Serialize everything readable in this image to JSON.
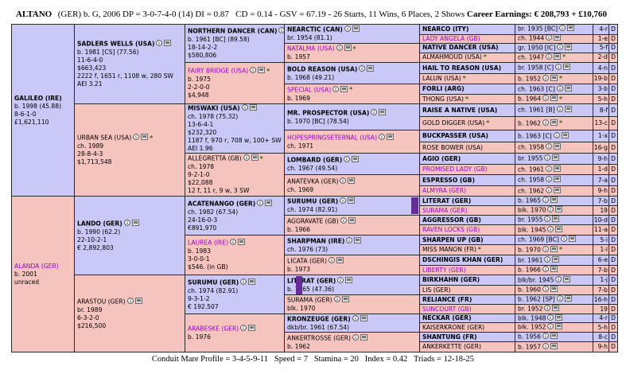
{
  "header": {
    "name": "ALTANO",
    "details": "(GER) b. G, 2006 DP = 3-0-7-4-0 (14) DI = 0.87   CD = 0.14 - GSV = 67.19 - 26 Starts, 11 Wins, 6 Places, 2 Shows",
    "earnings_label": "Career Earnings:",
    "earnings": "€ 208,793 + £10,760"
  },
  "pedigree": {
    "gen1": [
      {
        "name": "GALILEO (IRE)",
        "lines": [
          "b. 1998 (45.88)",
          "8-6-1-0",
          "£1,621,110"
        ]
      },
      {
        "name": "ALANDA (GER)",
        "color": "#9b00c8",
        "lines": [
          "b. 2001",
          "unraced"
        ]
      }
    ],
    "gen2": [
      {
        "name": "SADLERS WELLS (USA)",
        "lines": [
          "b. 1981 [CS] (77.56)",
          "11-6-4-0",
          "$663,423",
          "2222 f, 1651 r, 1108 w, 280 SW",
          "AEI 3.21"
        ]
      },
      {
        "name": "URBAN SEA (USA)",
        "star": "*",
        "lines": [
          "ch. 1989",
          "28-8-4-3",
          "$1,713,548"
        ]
      },
      {
        "name": "LANDO (GER)",
        "lines": [
          "b. 1990 (62.2)",
          "22-10-2-1",
          "€ 2,892,803"
        ]
      },
      {
        "name": "ARASTOU (GER)",
        "lines": [
          "br. 1989",
          "6-3-2-0",
          "$216,500"
        ]
      }
    ],
    "gen3": [
      {
        "name": "NORTHERN DANCER (CAN)",
        "lines": [
          "b. 1961 [BC] (89.58)",
          "18-14-2-2",
          "$580,806"
        ]
      },
      {
        "name": "FAIRY BRIDGE (USA)",
        "color": "#9b00c8",
        "star": "*",
        "lines": [
          "b. 1975",
          "2-2-0-0",
          "$4,948"
        ]
      },
      {
        "name": "MISWAKI (USA)",
        "lines": [
          "ch. 1978 (75.32)",
          "13-6-4-1",
          "$232,320",
          "1187 f, 970 r, 708 w, 100+ SW",
          "AEI 1.96"
        ]
      },
      {
        "name": "ALLEGRETTA (GB)",
        "star": "*",
        "lines": [
          "ch. 1978",
          "9-2-1-0",
          "$22,088",
          "12 f, 11 r, 9 w, 3 SW"
        ]
      },
      {
        "name": "ACATENANGO (GER)",
        "lines": [
          "ch. 1982 (67.54)",
          "24-16-0-3",
          "€891,970"
        ]
      },
      {
        "name": "LAUREA (IRE)",
        "color": "#9b00c8",
        "lines": [
          "b. 1983",
          "3-0-0-1",
          "$546. (in GB)"
        ]
      },
      {
        "name": "SURUMU (GER)",
        "lines": [
          "ch. 1974 (82.91)",
          "9-3-1-2",
          "€ 192.507"
        ]
      },
      {
        "name": "ARABESKE (GER)",
        "color": "#9b00c8",
        "lines": [
          "b. 1976"
        ]
      }
    ],
    "gen4": [
      {
        "name": "NEARCTIC (CAN)",
        "lines": [
          "br. 1954 (81.1)"
        ]
      },
      {
        "name": "NATALMA (USA)",
        "color": "#9b00c8",
        "star": "*",
        "lines": [
          "b. 1957"
        ]
      },
      {
        "name": "BOLD REASON (USA)",
        "lines": [
          "b. 1968 (49.21)"
        ]
      },
      {
        "name": "SPECIAL (USA)",
        "color": "#9b00c8",
        "star": "*",
        "lines": [
          "b. 1969"
        ]
      },
      {
        "name": "MR. PROSPECTOR (USA)",
        "lines": [
          "b. 1970 [BC] (78.54)"
        ]
      },
      {
        "name": "HOPESPRINGSETERNAL (USA)",
        "color": "#9b00c8",
        "lines": [
          "ch. 1971"
        ]
      },
      {
        "name": "LOMBARD (GER)",
        "lines": [
          "ch. 1967 (49.54)"
        ]
      },
      {
        "name": "ANATEVKA (GER)",
        "lines": [
          "ch. 1969"
        ]
      },
      {
        "name": "SURUMU (GER)",
        "lines": [
          "ch. 1974 (82.91)"
        ]
      },
      {
        "name": "AGGRAVATE (GB)",
        "lines": [
          "b. 1966"
        ]
      },
      {
        "name": "SHARPMAN (IRE)",
        "lines": [
          "ch. 1976 (73)"
        ]
      },
      {
        "name": "LICATA (GER)",
        "lines": [
          "b. 1973"
        ]
      },
      {
        "name": "LITERAT (GER)",
        "lines": [
          "b. 1965 (47.36)"
        ]
      },
      {
        "name": "SURAMA (GER)",
        "lines": [
          "blk. 1970"
        ]
      },
      {
        "name": "KRONZEUGE (GER)",
        "lines": [
          "dkb/br. 1961 (67.54)"
        ]
      },
      {
        "name": "ANKERTROSSE (GER)",
        "lines": [
          "b. 1962"
        ]
      }
    ],
    "gen5": [
      {
        "name": "NEARCO (ITY)",
        "info": "br. 1935 [BC]",
        "family": "4-r",
        "d": "D"
      },
      {
        "name": "LADY ANGELA (GB)",
        "color": "#9b00c8",
        "info": "ch. 1944",
        "family": "1-e",
        "d": "D"
      },
      {
        "name": "NATIVE DANCER (USA)",
        "info": "gr. 1950 [IC]",
        "family": "5-f",
        "d": "D"
      },
      {
        "name": "ALMAHMOUD (USA)",
        "info": "ch. 1947",
        "star": "*",
        "family": "2-d",
        "d": "D"
      },
      {
        "name": "HAIL TO REASON (USA)",
        "info": "br. 1958 [C]",
        "family": "4-n",
        "d": "D"
      },
      {
        "name": "LALUN (USA)",
        "info": "b. 1952",
        "star": "*",
        "family": "19-b",
        "d": "D"
      },
      {
        "name": "FORLI (ARG)",
        "info": "ch. 1963 [C]",
        "family": "3-b",
        "d": "D"
      },
      {
        "name": "THONG (USA)",
        "info": "b. 1964",
        "star": "*",
        "family": "5-h",
        "d": "D"
      },
      {
        "name": "RAISE A NATIVE (USA)",
        "info": "ch. 1961 [B]",
        "family": "8-f",
        "d": "D"
      },
      {
        "name": "GOLD DIGGER (USA)",
        "info": "b. 1962",
        "star": "*",
        "family": "13-c",
        "d": "D"
      },
      {
        "name": "BUCKPASSER (USA)",
        "info": "b. 1963 [C]",
        "family": "1-x",
        "d": "D"
      },
      {
        "name": "ROSE BOWER (USA)",
        "info": "ch. 1958",
        "family": "16-g",
        "d": "D"
      },
      {
        "name": "AGIO (GER)",
        "info": "br. 1955",
        "family": "9-h",
        "d": "D"
      },
      {
        "name": "PROMISED LADY (GB)",
        "color": "#9b00c8",
        "info": "ch. 1961",
        "family": "1-d",
        "d": "D"
      },
      {
        "name": "ESPRESSO (GB)",
        "info": "ch. 1958",
        "family": "7-a",
        "d": "D"
      },
      {
        "name": "ALMYRA (GER)",
        "color": "#9b00c8",
        "info": "ch. 1962",
        "family": "9-h",
        "d": "D"
      },
      {
        "name": "LITERAT (GER)",
        "info": "b. 1965",
        "family": "7-b",
        "d": "D"
      },
      {
        "name": "SURAMA (GER)",
        "color": "#9b00c8",
        "info": "blk. 1970",
        "family": "19",
        "d": "D"
      },
      {
        "name": "AGGRESSOR (GB)",
        "info": "br. 1955",
        "family": "10-d",
        "d": "D"
      },
      {
        "name": "RAVEN LOCKS (GB)",
        "color": "#9b00c8",
        "info": "blk. 1945",
        "family": "11-a",
        "d": "D"
      },
      {
        "name": "SHARPEN UP (GB)",
        "info": "ch. 1969 [BC]",
        "family": "5-i",
        "d": "D"
      },
      {
        "name": "MISS MANON (FR)",
        "info": "b. 1970",
        "star": "*",
        "family": "1-l",
        "d": "D"
      },
      {
        "name": "DSCHINGIS KHAN (GER)",
        "info": "br. 1961",
        "family": "6-e",
        "d": "D"
      },
      {
        "name": "LIBERTY (GER)",
        "color": "#9b00c8",
        "info": "b. 1966",
        "family": "7-b",
        "d": "D"
      },
      {
        "name": "BIRKHAHN (GER)",
        "info": "blk/br. 1945",
        "family": "1-j",
        "d": "D"
      },
      {
        "name": "LIS (GER)",
        "info": "b. 1960",
        "family": "7-b",
        "d": "D"
      },
      {
        "name": "RELIANCE (FR)",
        "info": "b. 1962 [SP]",
        "family": "16-h",
        "d": "D"
      },
      {
        "name": "SUNCOURT (GB)",
        "color": "#9b00c8",
        "info": "br. 1952",
        "family": "19",
        "d": "D"
      },
      {
        "name": "NECKAR (GER)",
        "info": "blk. 1948",
        "family": "4-r",
        "d": "D"
      },
      {
        "name": "KAISERKRONE (GER)",
        "info": "blk. 1952",
        "family": "5-h",
        "d": "D"
      },
      {
        "name": "SHANTUNG (FR)",
        "info": "b. 1956",
        "family": "8-c",
        "d": "D"
      },
      {
        "name": "ANKERKETTE (GER)",
        "info": "b. 1957",
        "family": "9-h",
        "d": "D"
      }
    ]
  },
  "footer": "Conduit Mare Profile = 3-4-5-9-11   Speed = 7   Stamina = 20   Index = 0.42   Triads = 12-18-25"
}
